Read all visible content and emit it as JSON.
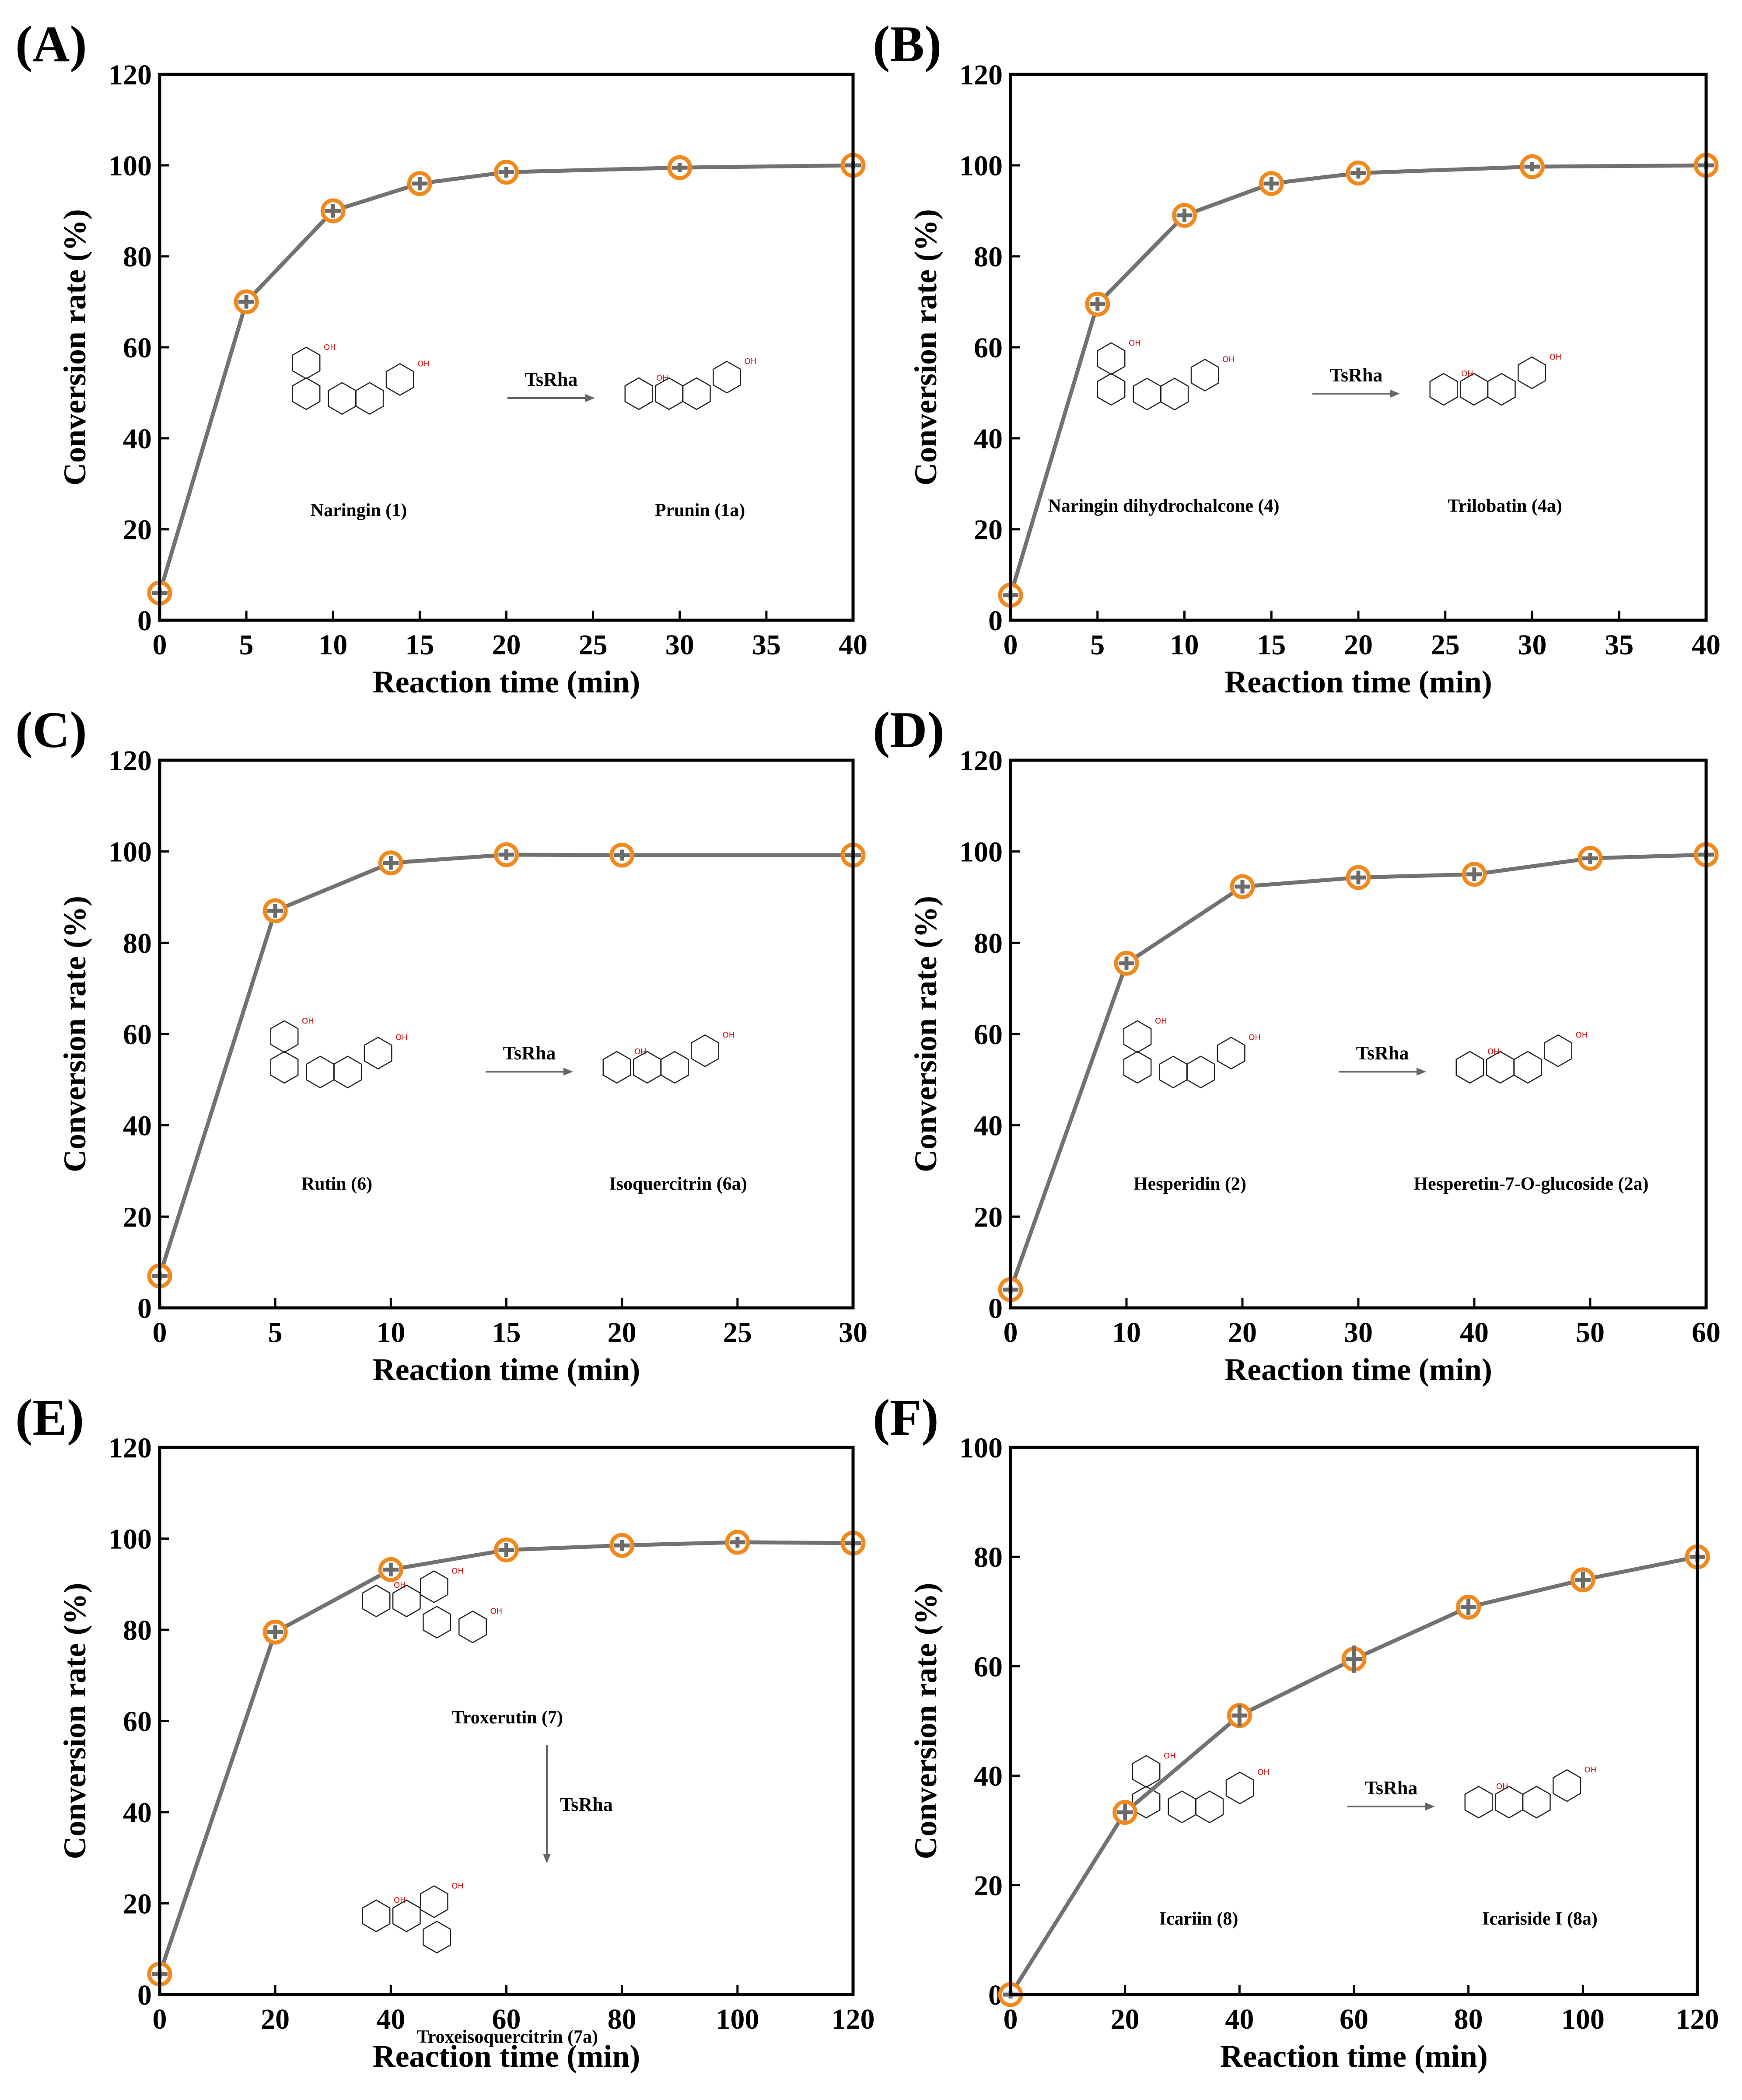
{
  "figure": {
    "background": "#ffffff",
    "line_color": "#727272",
    "marker_color": "#f08a1e"
  },
  "chart_data": [
    {
      "id": "A",
      "panel_label": "(A)",
      "type": "line",
      "xlabel": "Reaction time (min)",
      "ylabel": "Conversion rate (%)",
      "xlim": [
        0,
        40
      ],
      "ylim": [
        0,
        120
      ],
      "xticks": [
        0,
        5,
        10,
        15,
        20,
        25,
        30,
        35,
        40
      ],
      "yticks": [
        0,
        20,
        40,
        60,
        80,
        100,
        120
      ],
      "x": [
        0,
        5,
        10,
        15,
        20,
        30,
        40
      ],
      "y": [
        6,
        70,
        90,
        96,
        98.5,
        99.5,
        100
      ],
      "err": [
        1,
        1.5,
        1.5,
        1.5,
        1.2,
        1,
        0.8
      ],
      "scheme": {
        "substrate": "Naringin (1)",
        "product": "Prunin (1a)",
        "enzyme": "TsRha"
      }
    },
    {
      "id": "B",
      "panel_label": "(B)",
      "type": "line",
      "xlabel": "Reaction time (min)",
      "ylabel": "Conversion rate (%)",
      "xlim": [
        0,
        40
      ],
      "ylim": [
        0,
        120
      ],
      "xticks": [
        0,
        5,
        10,
        15,
        20,
        25,
        30,
        35,
        40
      ],
      "yticks": [
        0,
        20,
        40,
        60,
        80,
        100,
        120
      ],
      "x": [
        0,
        5,
        10,
        15,
        20,
        30,
        40
      ],
      "y": [
        5.5,
        69.5,
        89,
        96,
        98.3,
        99.7,
        100
      ],
      "err": [
        1,
        1.5,
        1.5,
        1.5,
        1.2,
        1,
        0.8
      ],
      "scheme": {
        "substrate": "Naringin dihydrochalcone (4)",
        "product": "Trilobatin (4a)",
        "enzyme": "TsRha"
      }
    },
    {
      "id": "C",
      "panel_label": "(C)",
      "type": "line",
      "xlabel": "Reaction time (min)",
      "ylabel": "Conversion rate (%)",
      "xlim": [
        0,
        30
      ],
      "ylim": [
        0,
        120
      ],
      "xticks": [
        0,
        5,
        10,
        15,
        20,
        25,
        30
      ],
      "yticks": [
        0,
        20,
        40,
        60,
        80,
        100,
        120
      ],
      "x": [
        0,
        5,
        10,
        15,
        20,
        30
      ],
      "y": [
        7,
        87,
        97.5,
        99.3,
        99.2,
        99.2
      ],
      "err": [
        1,
        1.5,
        1.5,
        1.2,
        1.2,
        1
      ],
      "scheme": {
        "substrate": "Rutin (6)",
        "product": "Isoquercitrin (6a)",
        "enzyme": "TsRha"
      }
    },
    {
      "id": "D",
      "panel_label": "(D)",
      "type": "line",
      "xlabel": "Reaction time (min)",
      "ylabel": "Conversion rate (%)",
      "xlim": [
        0,
        60
      ],
      "ylim": [
        0,
        120
      ],
      "xticks": [
        0,
        10,
        20,
        30,
        40,
        50,
        60
      ],
      "yticks": [
        0,
        20,
        40,
        60,
        80,
        100,
        120
      ],
      "x": [
        0,
        10,
        20,
        30,
        40,
        50,
        60
      ],
      "y": [
        4,
        75.5,
        92.3,
        94.3,
        95,
        98.5,
        99.3
      ],
      "err": [
        1,
        1.5,
        1.5,
        1.5,
        1.5,
        1.2,
        1
      ],
      "scheme": {
        "substrate": "Hesperidin (2)",
        "product": "Hesperetin-7-O-glucoside (2a)",
        "enzyme": "TsRha"
      }
    },
    {
      "id": "E",
      "panel_label": "(E)",
      "type": "line",
      "xlabel": "Reaction time (min)",
      "ylabel": "Conversion rate (%)",
      "xlim": [
        0,
        120
      ],
      "ylim": [
        0,
        120
      ],
      "xticks": [
        0,
        20,
        40,
        60,
        80,
        100,
        120
      ],
      "yticks": [
        0,
        20,
        40,
        60,
        80,
        100,
        120
      ],
      "x": [
        0,
        20,
        40,
        60,
        80,
        100,
        120
      ],
      "y": [
        4.5,
        79.5,
        93.2,
        97.5,
        98.5,
        99.2,
        99
      ],
      "err": [
        1,
        1.5,
        1.5,
        1.5,
        1.2,
        1.2,
        1
      ],
      "scheme": {
        "substrate": "Troxerutin (7)",
        "product": "Troxeisoquercitrin (7a)",
        "enzyme": "TsRha"
      }
    },
    {
      "id": "F",
      "panel_label": "(F)",
      "type": "line",
      "xlabel": "Reaction time (min)",
      "ylabel": "Conversion rate (%)",
      "xlim": [
        0,
        120
      ],
      "ylim": [
        0,
        100
      ],
      "xticks": [
        0,
        20,
        40,
        60,
        80,
        100,
        120
      ],
      "yticks": [
        0,
        20,
        40,
        60,
        80,
        100
      ],
      "x": [
        0,
        20,
        40,
        60,
        80,
        100,
        120
      ],
      "y": [
        0,
        33.3,
        51,
        61.3,
        70.8,
        75.8,
        80
      ],
      "err": [
        0.5,
        1.5,
        2,
        2.5,
        1.5,
        1.5,
        1
      ],
      "scheme": {
        "substrate": "Icariin (8)",
        "product": "Icariside I (8a)",
        "enzyme": "TsRha"
      }
    }
  ]
}
